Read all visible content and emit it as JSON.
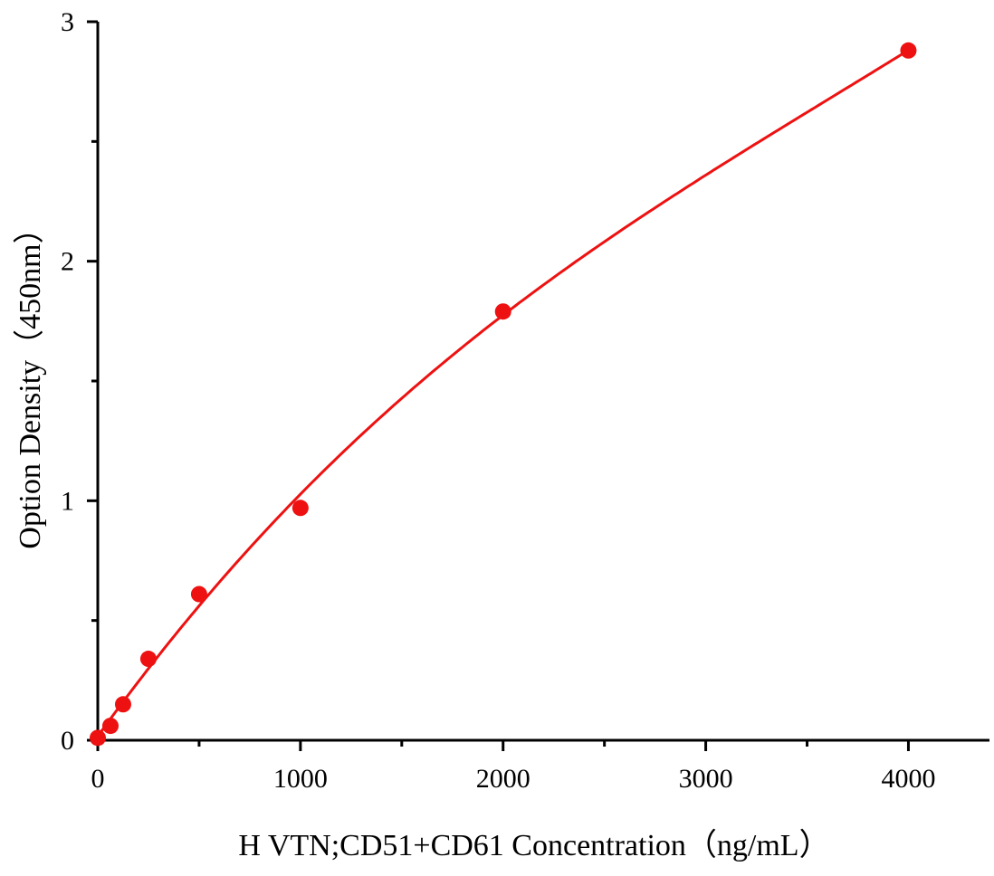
{
  "chart_data": {
    "type": "scatter",
    "title": "",
    "xlabel": "H VTN;CD51+CD61 Concentration（ng/mL）",
    "ylabel": "Option Density（450nm）",
    "xlim": [
      0,
      4400
    ],
    "ylim": [
      0,
      3
    ],
    "xticks": [
      0,
      1000,
      2000,
      3000,
      4000
    ],
    "xtick_labels": [
      "0",
      "1000",
      "2000",
      "3000",
      "4000"
    ],
    "xminor_step": 500,
    "yticks": [
      0,
      1,
      2,
      3
    ],
    "ytick_labels": [
      "0",
      "1",
      "2",
      "3"
    ],
    "yminor_step": 0.5,
    "grid": false,
    "series": [
      {
        "x": [
          0,
          62.5,
          125,
          250,
          500,
          1000,
          2000,
          4000
        ],
        "y": [
          0.01,
          0.06,
          0.15,
          0.34,
          0.61,
          0.97,
          1.79,
          2.88
        ],
        "color": "#ee1111",
        "fit_curve": true
      }
    ]
  }
}
